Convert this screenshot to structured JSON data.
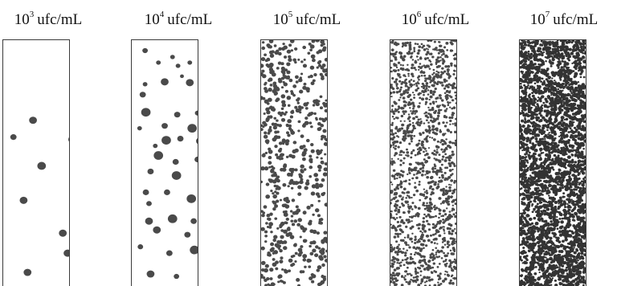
{
  "panels": [
    {
      "base": "10",
      "exponent": "3",
      "unit": "ufc/mL",
      "level": 3
    },
    {
      "base": "10",
      "exponent": "4",
      "unit": "ufc/mL",
      "level": 4
    },
    {
      "base": "10",
      "exponent": "5",
      "unit": "ufc/mL",
      "level": 5
    },
    {
      "base": "10",
      "exponent": "6",
      "unit": "ufc/mL",
      "level": 6
    },
    {
      "base": "10",
      "exponent": "7",
      "unit": "ufc/mL",
      "level": 7
    }
  ],
  "colors": {
    "colony": "#4a4a4a",
    "colony_dark": "#333333",
    "border": "#3a3a3a",
    "background": "#ffffff"
  }
}
